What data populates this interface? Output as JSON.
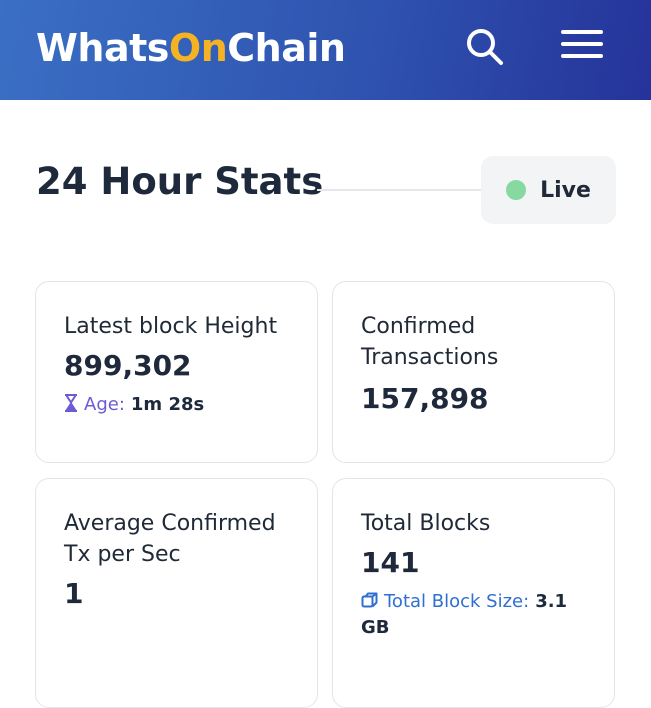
{
  "header": {
    "logo_part1": "Whats",
    "logo_part2": "On",
    "logo_part3": "Chain",
    "search_icon": "search-icon",
    "menu_icon": "hamburger-menu-icon"
  },
  "stats": {
    "title": "24 Hour Stats",
    "live_label": "Live",
    "live_color": "#86d9a1"
  },
  "cards": {
    "latest_block": {
      "label": "Latest block Height",
      "value": "899,302",
      "meta_label": "Age:",
      "meta_value": "1m 28s",
      "meta_icon": "hourglass-icon"
    },
    "confirmed_tx": {
      "label": "Confirmed Transactions",
      "value": "157,898"
    },
    "avg_tx": {
      "label": "Average Confirmed Tx per Sec",
      "value": "1"
    },
    "total_blocks": {
      "label": "Total Blocks",
      "value": "141",
      "meta_label": "Total Block Size:",
      "meta_value": "3.1 GB",
      "meta_icon": "cube-icon"
    }
  },
  "colors": {
    "accent": "#f5b324",
    "header_start": "#3a6fc4",
    "header_end": "#25339a",
    "purple": "#6b5bd6",
    "blue": "#2f6fd0"
  }
}
